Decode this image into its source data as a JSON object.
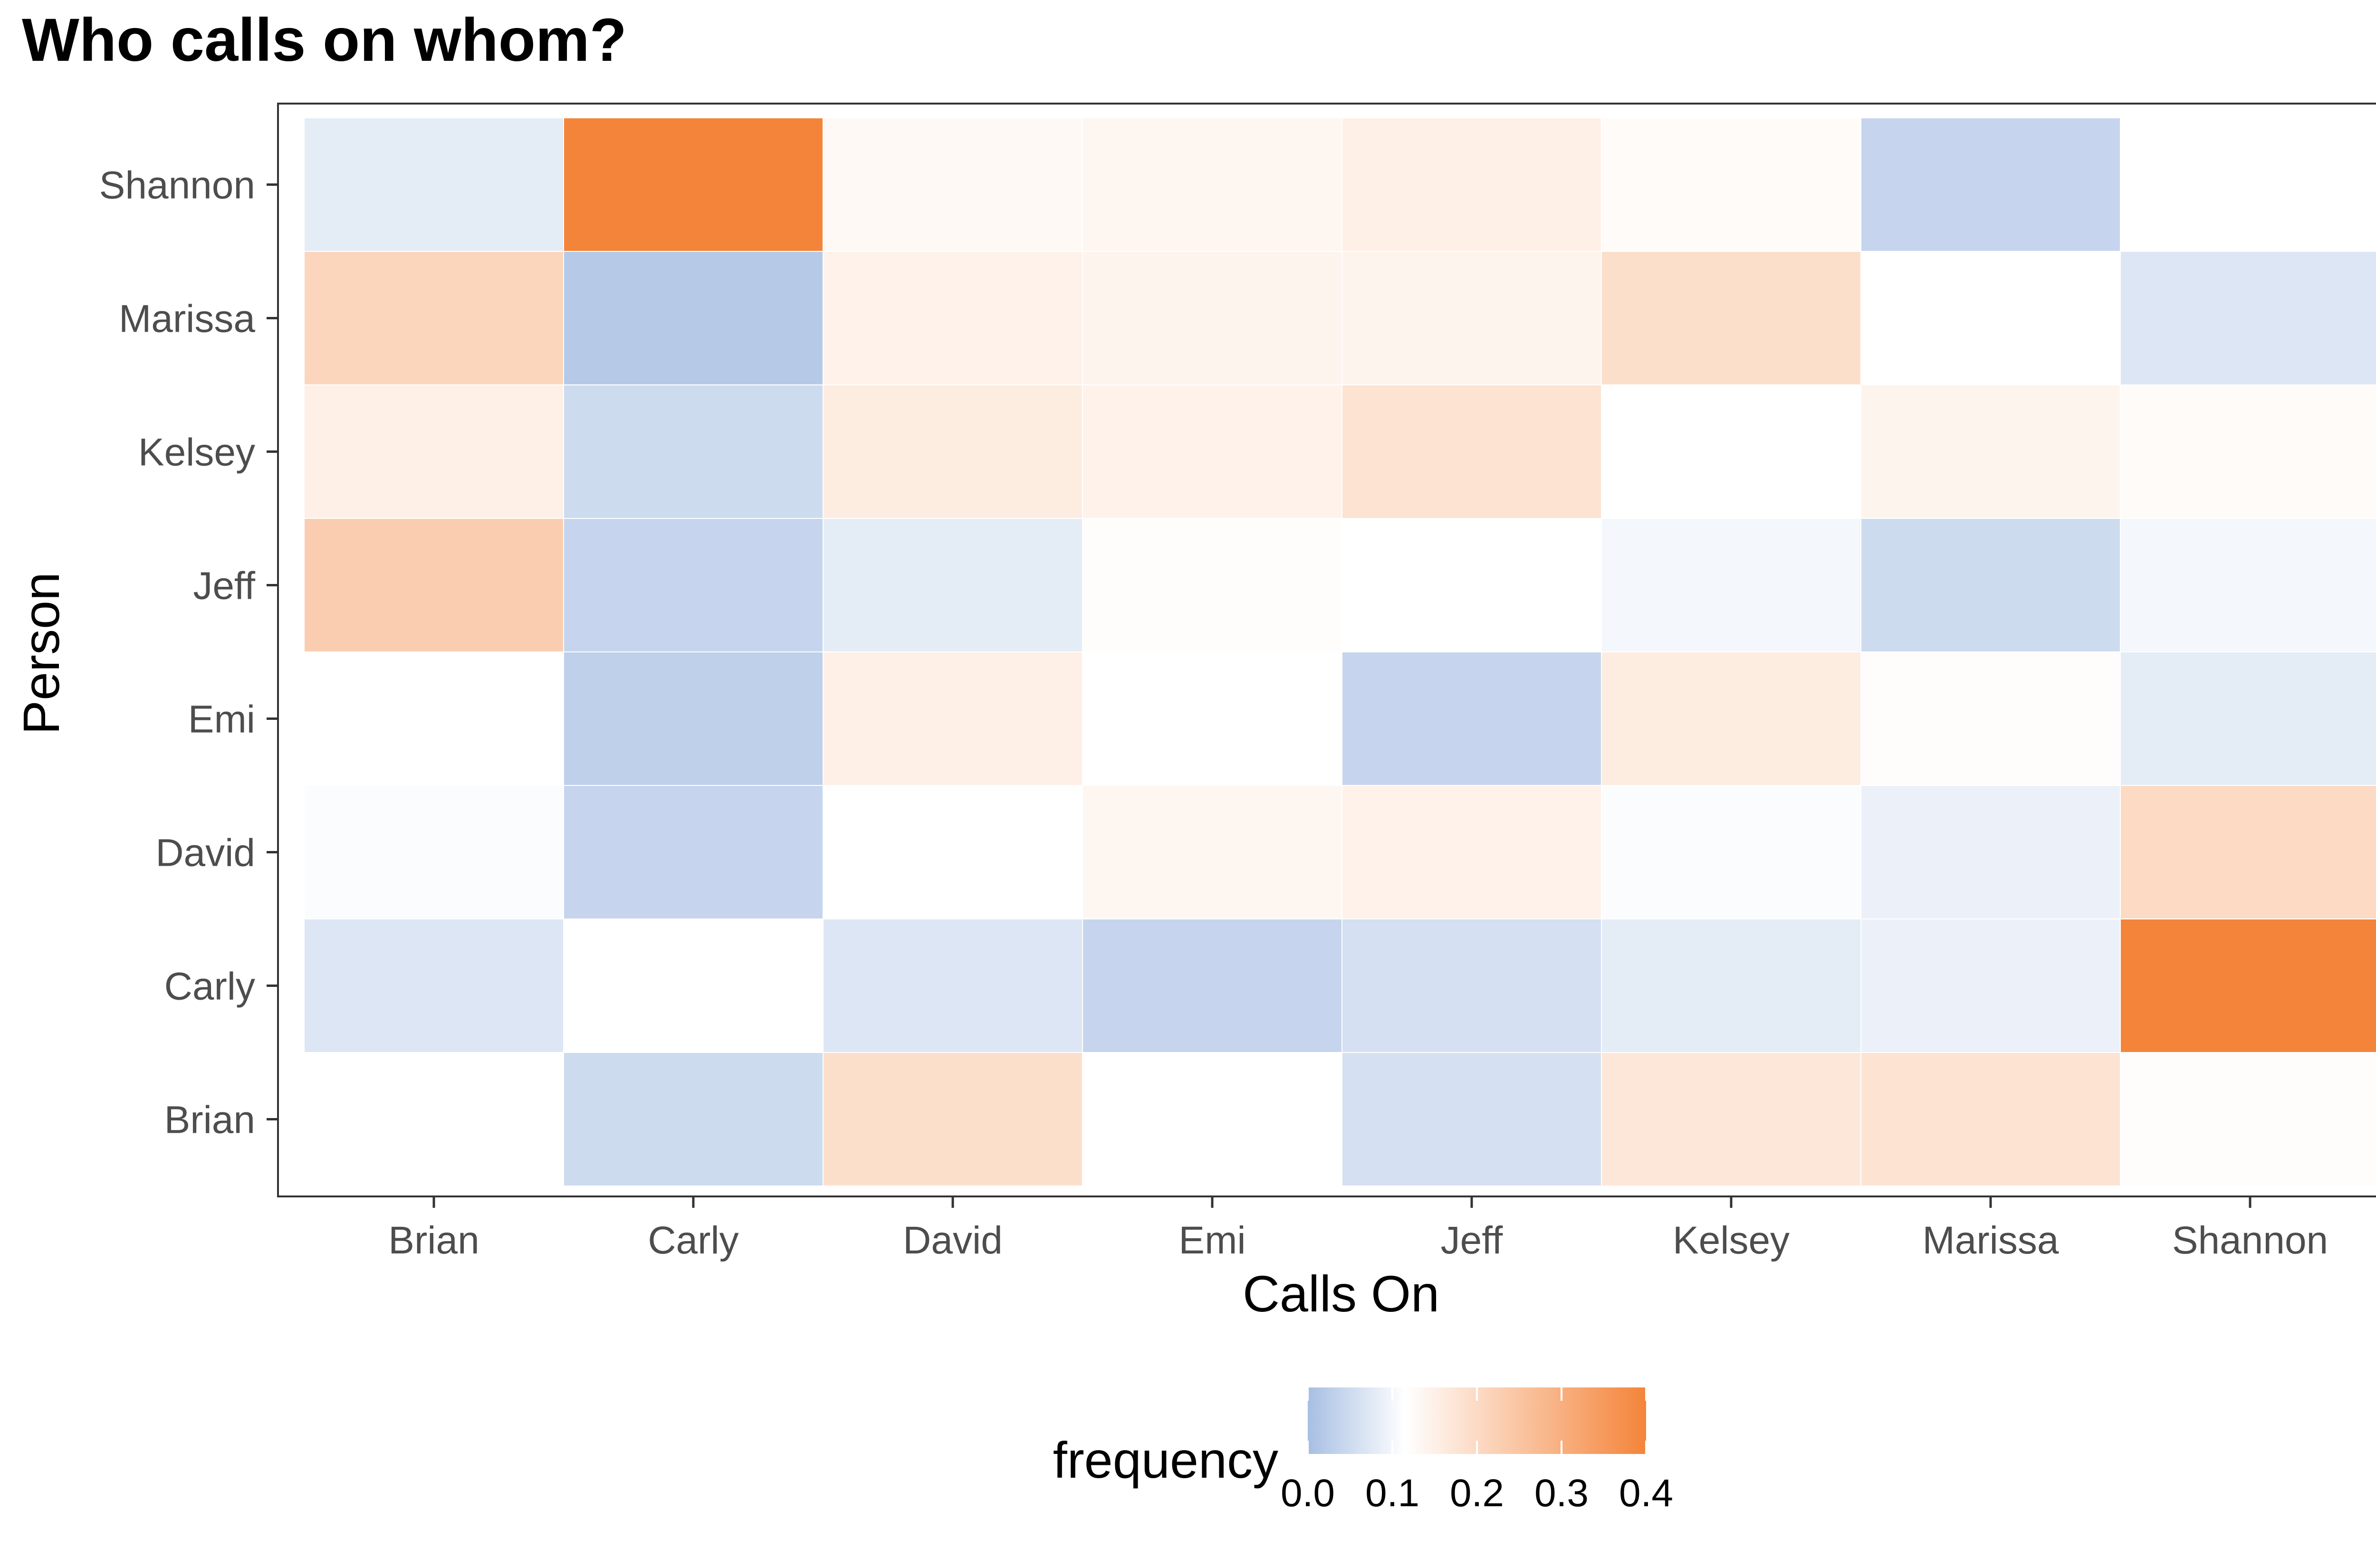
{
  "chart_data": {
    "type": "heatmap",
    "title": "Who calls on whom?",
    "xlabel": "Calls On",
    "ylabel": "Person",
    "x_categories": [
      "Brian",
      "Carly",
      "David",
      "Emi",
      "Jeff",
      "Kelsey",
      "Marissa",
      "Shannon"
    ],
    "y_categories": [
      "Brian",
      "Carly",
      "David",
      "Emi",
      "Jeff",
      "Kelsey",
      "Marissa",
      "Shannon"
    ],
    "cells": [
      {
        "person": "Shannon",
        "calls_on": "Brian",
        "frequency": 0.08
      },
      {
        "person": "Shannon",
        "calls_on": "Carly",
        "frequency": 0.4
      },
      {
        "person": "Shannon",
        "calls_on": "David",
        "frequency": 0.13
      },
      {
        "person": "Shannon",
        "calls_on": "Emi",
        "frequency": 0.135
      },
      {
        "person": "Shannon",
        "calls_on": "Jeff",
        "frequency": 0.15
      },
      {
        "person": "Shannon",
        "calls_on": "Kelsey",
        "frequency": 0.125
      },
      {
        "person": "Shannon",
        "calls_on": "Marissa",
        "frequency": 0.04
      },
      {
        "person": "Marissa",
        "calls_on": "Brian",
        "frequency": 0.21
      },
      {
        "person": "Marissa",
        "calls_on": "Carly",
        "frequency": 0.02
      },
      {
        "person": "Marissa",
        "calls_on": "David",
        "frequency": 0.145
      },
      {
        "person": "Marissa",
        "calls_on": "Emi",
        "frequency": 0.14
      },
      {
        "person": "Marissa",
        "calls_on": "Jeff",
        "frequency": 0.14
      },
      {
        "person": "Marissa",
        "calls_on": "Kelsey",
        "frequency": 0.19
      },
      {
        "person": "Marissa",
        "calls_on": "Shannon",
        "frequency": 0.07
      },
      {
        "person": "Kelsey",
        "calls_on": "Brian",
        "frequency": 0.15
      },
      {
        "person": "Kelsey",
        "calls_on": "Carly",
        "frequency": 0.05
      },
      {
        "person": "Kelsey",
        "calls_on": "David",
        "frequency": 0.16
      },
      {
        "person": "Kelsey",
        "calls_on": "Emi",
        "frequency": 0.145
      },
      {
        "person": "Kelsey",
        "calls_on": "Jeff",
        "frequency": 0.18
      },
      {
        "person": "Kelsey",
        "calls_on": "Marissa",
        "frequency": 0.14
      },
      {
        "person": "Kelsey",
        "calls_on": "Shannon",
        "frequency": 0.125
      },
      {
        "person": "Jeff",
        "calls_on": "Brian",
        "frequency": 0.23
      },
      {
        "person": "Jeff",
        "calls_on": "Carly",
        "frequency": 0.04
      },
      {
        "person": "Jeff",
        "calls_on": "David",
        "frequency": 0.08
      },
      {
        "person": "Jeff",
        "calls_on": "Emi",
        "frequency": 0.12
      },
      {
        "person": "Jeff",
        "calls_on": "Kelsey",
        "frequency": 0.1
      },
      {
        "person": "Jeff",
        "calls_on": "Marissa",
        "frequency": 0.05
      },
      {
        "person": "Jeff",
        "calls_on": "Shannon",
        "frequency": 0.1
      },
      {
        "person": "Emi",
        "calls_on": "Brian",
        "frequency": 0.115
      },
      {
        "person": "Emi",
        "calls_on": "Carly",
        "frequency": 0.03
      },
      {
        "person": "Emi",
        "calls_on": "David",
        "frequency": 0.15
      },
      {
        "person": "Emi",
        "calls_on": "Jeff",
        "frequency": 0.04
      },
      {
        "person": "Emi",
        "calls_on": "Kelsey",
        "frequency": 0.16
      },
      {
        "person": "Emi",
        "calls_on": "Marissa",
        "frequency": 0.12
      },
      {
        "person": "Emi",
        "calls_on": "Shannon",
        "frequency": 0.08
      },
      {
        "person": "David",
        "calls_on": "Brian",
        "frequency": 0.11
      },
      {
        "person": "David",
        "calls_on": "Carly",
        "frequency": 0.04
      },
      {
        "person": "David",
        "calls_on": "Emi",
        "frequency": 0.135
      },
      {
        "person": "David",
        "calls_on": "Jeff",
        "frequency": 0.145
      },
      {
        "person": "David",
        "calls_on": "Kelsey",
        "frequency": 0.11
      },
      {
        "person": "David",
        "calls_on": "Marissa",
        "frequency": 0.09
      },
      {
        "person": "David",
        "calls_on": "Shannon",
        "frequency": 0.2
      },
      {
        "person": "Carly",
        "calls_on": "Brian",
        "frequency": 0.07
      },
      {
        "person": "Carly",
        "calls_on": "David",
        "frequency": 0.07
      },
      {
        "person": "Carly",
        "calls_on": "Emi",
        "frequency": 0.04
      },
      {
        "person": "Carly",
        "calls_on": "Jeff",
        "frequency": 0.06
      },
      {
        "person": "Carly",
        "calls_on": "Kelsey",
        "frequency": 0.08
      },
      {
        "person": "Carly",
        "calls_on": "Marissa",
        "frequency": 0.09
      },
      {
        "person": "Carly",
        "calls_on": "Shannon",
        "frequency": 0.4
      },
      {
        "person": "Brian",
        "calls_on": "Carly",
        "frequency": 0.05
      },
      {
        "person": "Brian",
        "calls_on": "David",
        "frequency": 0.19
      },
      {
        "person": "Brian",
        "calls_on": "Emi",
        "frequency": 0.115
      },
      {
        "person": "Brian",
        "calls_on": "Jeff",
        "frequency": 0.06
      },
      {
        "person": "Brian",
        "calls_on": "Kelsey",
        "frequency": 0.17
      },
      {
        "person": "Brian",
        "calls_on": "Marissa",
        "frequency": 0.18
      },
      {
        "person": "Brian",
        "calls_on": "Shannon",
        "frequency": 0.12
      }
    ],
    "legend": {
      "title": "frequency",
      "position": "bottom",
      "range": [
        0.0,
        0.4
      ],
      "ticks": [
        "0.0",
        "0.1",
        "0.2",
        "0.3",
        "0.4"
      ],
      "tick_values": [
        0.0,
        0.1,
        0.2,
        0.3,
        0.4
      ],
      "low_color": "#a7bfe3",
      "mid_color": "#ffffff",
      "mid_value": 0.115,
      "high_color": "#f4843a"
    },
    "grid": false,
    "panel_border": true
  }
}
